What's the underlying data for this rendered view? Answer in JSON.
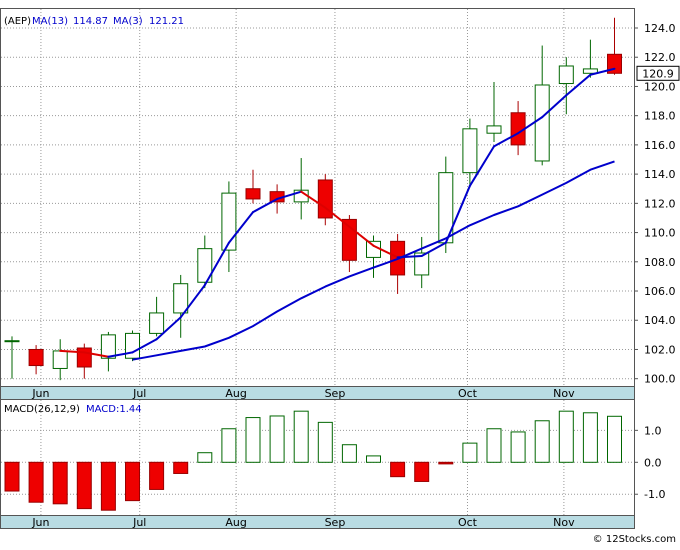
{
  "chart_data": [
    {
      "type": "candlestick",
      "symbol": "(AEP)",
      "legend": [
        {
          "label": "MA(13)",
          "value": "114.87",
          "color": "#0000cc"
        },
        {
          "label": "MA(3)",
          "value": "121.21",
          "color": "#0000cc"
        }
      ],
      "last_price": "120.9",
      "ylim": [
        99.5,
        125.3
      ],
      "yticks": [
        "124.0",
        "122.0",
        "120.0",
        "118.0",
        "116.0",
        "114.0",
        "112.0",
        "110.0",
        "108.0",
        "106.0",
        "104.0",
        "102.0",
        "100.0"
      ],
      "month_labels": [
        {
          "label": "Jun",
          "index": 1.2
        },
        {
          "label": "Jul",
          "index": 5.3
        },
        {
          "label": "Aug",
          "index": 9.3
        },
        {
          "label": "Sep",
          "index": 13.4
        },
        {
          "label": "Oct",
          "index": 18.9
        },
        {
          "label": "Nov",
          "index": 22.9
        }
      ],
      "candles": [
        {
          "o": 102.6,
          "h": 102.9,
          "l": 100.0,
          "c": 102.6
        },
        {
          "o": 102.0,
          "h": 102.3,
          "l": 100.3,
          "c": 100.9
        },
        {
          "o": 100.7,
          "h": 102.7,
          "l": 99.9,
          "c": 101.9
        },
        {
          "o": 102.1,
          "h": 102.4,
          "l": 100.0,
          "c": 100.8
        },
        {
          "o": 101.4,
          "h": 103.2,
          "l": 100.5,
          "c": 103.0
        },
        {
          "o": 101.4,
          "h": 103.3,
          "l": 101.2,
          "c": 103.1
        },
        {
          "o": 103.1,
          "h": 105.6,
          "l": 102.9,
          "c": 104.5
        },
        {
          "o": 104.5,
          "h": 107.1,
          "l": 102.8,
          "c": 106.5
        },
        {
          "o": 106.6,
          "h": 109.8,
          "l": 106.2,
          "c": 108.9
        },
        {
          "o": 108.8,
          "h": 113.5,
          "l": 107.3,
          "c": 112.7
        },
        {
          "o": 113.0,
          "h": 114.3,
          "l": 112.0,
          "c": 112.3
        },
        {
          "o": 112.8,
          "h": 113.3,
          "l": 111.3,
          "c": 112.1
        },
        {
          "o": 112.1,
          "h": 115.1,
          "l": 110.9,
          "c": 112.9
        },
        {
          "o": 113.6,
          "h": 114.0,
          "l": 110.5,
          "c": 111.0
        },
        {
          "o": 110.9,
          "h": 111.2,
          "l": 107.3,
          "c": 108.1
        },
        {
          "o": 108.3,
          "h": 109.8,
          "l": 106.9,
          "c": 109.4
        },
        {
          "o": 109.4,
          "h": 109.9,
          "l": 105.8,
          "c": 107.1
        },
        {
          "o": 107.1,
          "h": 109.7,
          "l": 106.2,
          "c": 108.6
        },
        {
          "o": 109.3,
          "h": 115.2,
          "l": 108.6,
          "c": 114.1
        },
        {
          "o": 114.1,
          "h": 117.8,
          "l": 113.1,
          "c": 117.1
        },
        {
          "o": 116.8,
          "h": 120.3,
          "l": 116.2,
          "c": 117.3
        },
        {
          "o": 118.2,
          "h": 119.0,
          "l": 115.3,
          "c": 116.0
        },
        {
          "o": 114.9,
          "h": 122.8,
          "l": 114.6,
          "c": 120.1
        },
        {
          "o": 120.2,
          "h": 122.0,
          "l": 118.1,
          "c": 121.4
        },
        {
          "o": 120.9,
          "h": 123.2,
          "l": 120.6,
          "c": 121.2
        },
        {
          "o": 122.2,
          "h": 124.7,
          "l": 120.8,
          "c": 120.9
        }
      ],
      "ma13": [
        null,
        null,
        null,
        null,
        null,
        101.3,
        101.6,
        101.9,
        102.2,
        102.8,
        103.6,
        104.6,
        105.5,
        106.3,
        107.0,
        107.6,
        108.2,
        108.9,
        109.6,
        110.5,
        111.2,
        111.8,
        112.6,
        113.4,
        114.3,
        114.87
      ],
      "ma3": [
        null,
        null,
        101.9,
        101.8,
        101.5,
        101.8,
        102.7,
        104.2,
        106.4,
        109.3,
        111.4,
        112.3,
        112.8,
        111.7,
        110.4,
        109.1,
        108.3,
        108.4,
        109.3,
        113.2,
        115.9,
        116.8,
        117.9,
        119.4,
        120.8,
        121.21
      ]
    },
    {
      "type": "bar",
      "title_label": "MACD(26,12,9)",
      "value_label": "MACD:1.44",
      "ylim": [
        -1.65,
        1.95
      ],
      "yticks": [
        "1.0",
        "0.0",
        "-1.0"
      ],
      "values": [
        -0.9,
        -1.25,
        -1.3,
        -1.45,
        -1.5,
        -1.2,
        -0.85,
        -0.35,
        0.3,
        1.05,
        1.4,
        1.45,
        1.6,
        1.25,
        0.55,
        0.2,
        -0.45,
        -0.6,
        -0.05,
        0.6,
        1.05,
        0.95,
        1.3,
        1.6,
        1.55,
        1.44
      ]
    }
  ],
  "watermark": "© 12Stocks.com"
}
